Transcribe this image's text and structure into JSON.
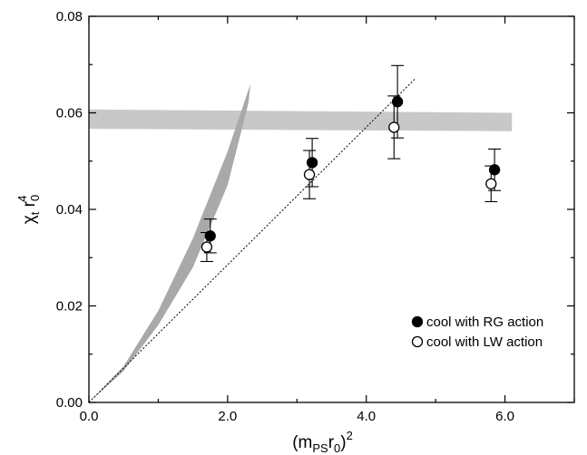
{
  "chart_data": {
    "type": "scatter",
    "title": "",
    "xlabel": "(m",
    "xlabel_sub": "PS",
    "xlabel_mid": "r",
    "xlabel_sub2": "0",
    "xlabel_end": ")",
    "xlabel_sup": "2",
    "ylabel": "χ",
    "ylabel_sub": "t",
    "ylabel_mid": " r",
    "ylabel_sub2": "0",
    "ylabel_sup": "4",
    "xlim": [
      0,
      7
    ],
    "ylim": [
      0,
      0.08
    ],
    "x_ticks": [
      {
        "value": 0,
        "label": "0.0"
      },
      {
        "value": 2,
        "label": "2.0"
      },
      {
        "value": 4,
        "label": "4.0"
      },
      {
        "value": 6,
        "label": "6.0"
      }
    ],
    "y_ticks": [
      {
        "value": 0,
        "label": "0.00"
      },
      {
        "value": 0.02,
        "label": "0.02"
      },
      {
        "value": 0.04,
        "label": "0.04"
      },
      {
        "value": 0.06,
        "label": "0.06"
      },
      {
        "value": 0.08,
        "label": "0.08"
      }
    ],
    "x_minor_step": 1,
    "y_minor_step": 0.01,
    "legend_position": "bottom-right",
    "series": [
      {
        "name": "cool with RG action",
        "marker": "filled-circle",
        "color": "#000000",
        "points": [
          {
            "x": 1.75,
            "y": 0.0345,
            "yerr": 0.0035
          },
          {
            "x": 3.22,
            "y": 0.0497,
            "yerr": 0.005
          },
          {
            "x": 4.45,
            "y": 0.0623,
            "yerr": 0.0075
          },
          {
            "x": 5.85,
            "y": 0.0482,
            "yerr": 0.0043
          }
        ]
      },
      {
        "name": "cool with LW action",
        "marker": "open-circle",
        "color": "#000000",
        "points": [
          {
            "x": 1.7,
            "y": 0.0322,
            "yerr": 0.003
          },
          {
            "x": 3.18,
            "y": 0.0472,
            "yerr": 0.005
          },
          {
            "x": 4.4,
            "y": 0.057,
            "yerr": 0.0065
          },
          {
            "x": 5.8,
            "y": 0.0453,
            "yerr": 0.0037
          }
        ]
      }
    ],
    "bands": [
      {
        "kind": "horizontal-band",
        "color": "#c8c8c8",
        "x_range": [
          0,
          6.1
        ],
        "y_low_start": 0.0567,
        "y_high_start": 0.0607,
        "y_low_end": 0.0562,
        "y_high_end": 0.06
      },
      {
        "kind": "curve-band",
        "color": "#a9a9a9",
        "lower": [
          [
            0,
            0
          ],
          [
            0.5,
            0.0065
          ],
          [
            1.0,
            0.016
          ],
          [
            1.5,
            0.028
          ],
          [
            2.0,
            0.045
          ],
          [
            2.3,
            0.062
          ]
        ],
        "upper": [
          [
            0,
            0
          ],
          [
            0.5,
            0.0075
          ],
          [
            1.0,
            0.019
          ],
          [
            1.5,
            0.034
          ],
          [
            2.0,
            0.052
          ],
          [
            2.33,
            0.066
          ]
        ]
      }
    ],
    "reference_lines": [
      {
        "style": "dotted",
        "color": "#000000",
        "from": [
          0,
          0
        ],
        "to": [
          4.7,
          0.067
        ]
      }
    ]
  }
}
